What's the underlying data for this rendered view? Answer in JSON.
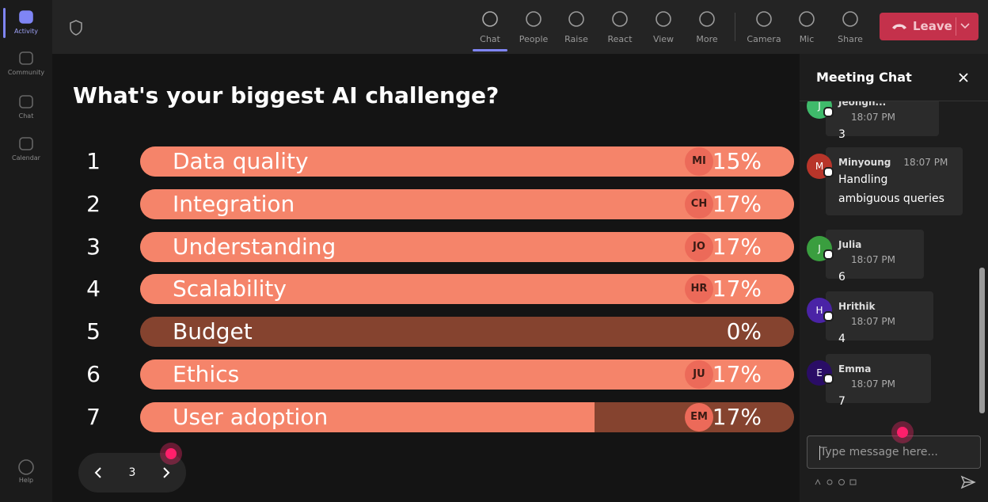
{
  "rail": {
    "items": [
      "Activity",
      "Community",
      "Chat",
      "Calendar"
    ],
    "help": "Help"
  },
  "toolbar": {
    "items": [
      "Chat",
      "People",
      "Raise",
      "React",
      "View",
      "More",
      "Camera",
      "Mic",
      "Share"
    ],
    "leave": "Leave"
  },
  "poll": {
    "question": "What's your biggest AI challenge?",
    "options": [
      {
        "rank": "1",
        "label": "Data quality",
        "avatar": "MI",
        "percent": "15%"
      },
      {
        "rank": "2",
        "label": "Integration",
        "avatar": "CH",
        "percent": "17%"
      },
      {
        "rank": "3",
        "label": "Understanding",
        "avatar": "JO",
        "percent": "17%"
      },
      {
        "rank": "4",
        "label": "Scalability",
        "avatar": "HR",
        "percent": "17%"
      },
      {
        "rank": "5",
        "label": "Budget",
        "avatar": null,
        "percent": "0%"
      },
      {
        "rank": "6",
        "label": "Ethics",
        "avatar": "JU",
        "percent": "17%"
      },
      {
        "rank": "7",
        "label": "User adoption",
        "avatar": "EM",
        "percent": "17%"
      }
    ],
    "page": "3"
  },
  "chat": {
    "title": "Meeting Chat",
    "messages": [
      {
        "initial": "J",
        "name": "Jeongh...",
        "time": "18:07 PM",
        "text": "3"
      },
      {
        "initial": "M",
        "name": "Minyoung",
        "time": "18:07 PM",
        "text": "Handling ambiguous queries"
      },
      {
        "initial": "J",
        "name": "Julia",
        "time": "18:07 PM",
        "text": "6"
      },
      {
        "initial": "H",
        "name": "Hrithik",
        "time": "18:07 PM",
        "text": "4"
      },
      {
        "initial": "E",
        "name": "Emma",
        "time": "18:07 PM",
        "text": "7"
      }
    ],
    "placeholder": "Type message here..."
  }
}
